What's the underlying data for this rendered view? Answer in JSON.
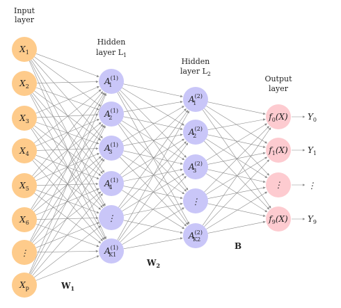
{
  "labels": {
    "input_layer": [
      "Input",
      "layer"
    ],
    "hidden1": [
      "Hidden",
      "layer L",
      "1"
    ],
    "hidden2": [
      "Hidden",
      "layer L",
      "2"
    ],
    "output_layer": [
      "Output",
      "layer"
    ],
    "w1": "W",
    "w1_sub": "1",
    "w2": "W",
    "w2_sub": "2",
    "b": "B"
  },
  "colors": {
    "input": "#fecb8b",
    "hidden": "#c9c6f8",
    "output": "#fdcbd0",
    "edge": "#8a8a8a"
  },
  "inputs": [
    {
      "base": "X",
      "sub": "1"
    },
    {
      "base": "X",
      "sub": "2"
    },
    {
      "base": "X",
      "sub": "3"
    },
    {
      "base": "X",
      "sub": "4"
    },
    {
      "base": "X",
      "sub": "5"
    },
    {
      "base": "X",
      "sub": "6"
    },
    {
      "base": "⋮",
      "sub": ""
    },
    {
      "base": "X",
      "sub": "p"
    }
  ],
  "hidden1": [
    {
      "base": "A",
      "sub": "1",
      "sup": "(1)"
    },
    {
      "base": "A",
      "sub": "2",
      "sup": "(1)"
    },
    {
      "base": "A",
      "sub": "3",
      "sup": "(1)"
    },
    {
      "base": "A",
      "sub": "4",
      "sup": "(1)"
    },
    {
      "base": "⋮",
      "sub": "",
      "sup": ""
    },
    {
      "base": "A",
      "sub": "K1",
      "sup": "(1)"
    }
  ],
  "hidden2": [
    {
      "base": "A",
      "sub": "1",
      "sup": "(2)"
    },
    {
      "base": "A",
      "sub": "2",
      "sup": "(2)"
    },
    {
      "base": "A",
      "sub": "3",
      "sup": "(2)"
    },
    {
      "base": "⋮",
      "sub": "",
      "sup": ""
    },
    {
      "base": "A",
      "sub": "K2",
      "sup": "(2)"
    }
  ],
  "outputs": [
    {
      "func": "f",
      "sub": "0",
      "arg": "(X)",
      "y": "Y",
      "ysub": "0"
    },
    {
      "func": "f",
      "sub": "1",
      "arg": "(X)",
      "y": "Y",
      "ysub": "1"
    },
    {
      "func": "⋮",
      "sub": "",
      "arg": "",
      "y": "⋮",
      "ysub": ""
    },
    {
      "func": "f",
      "sub": "9",
      "arg": "(X)",
      "y": "Y",
      "ysub": "9"
    }
  ]
}
